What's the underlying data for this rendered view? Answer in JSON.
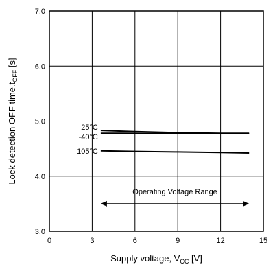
{
  "chart_data": {
    "type": "line",
    "title": "",
    "xlabel": {
      "main": "Supply voltage, V",
      "sub": "CC",
      "unit": " [V]"
    },
    "ylabel": {
      "main": "Lock detection OFF time.t",
      "sub": "OFF",
      "unit": " [s]"
    },
    "xlim": [
      0,
      15
    ],
    "ylim": [
      3.0,
      7.0
    ],
    "x_ticks": [
      0,
      3,
      6,
      9,
      12,
      15
    ],
    "x_tick_labels": [
      "0",
      "3",
      "6",
      "9",
      "12",
      "15"
    ],
    "y_ticks": [
      3.0,
      4.0,
      5.0,
      6.0,
      7.0
    ],
    "y_tick_labels": [
      "3.0",
      "4.0",
      "5.0",
      "6.0",
      "7.0"
    ],
    "grid": true,
    "series": [
      {
        "name": "25°C",
        "x": [
          3.6,
          6,
          9,
          12,
          14.0
        ],
        "y": [
          4.83,
          4.81,
          4.79,
          4.78,
          4.78
        ]
      },
      {
        "name": "-40°C",
        "x": [
          3.6,
          6,
          9,
          12,
          14.0
        ],
        "y": [
          4.78,
          4.78,
          4.78,
          4.77,
          4.77
        ]
      },
      {
        "name": "105°C",
        "x": [
          3.6,
          6,
          9,
          12,
          14.0
        ],
        "y": [
          4.46,
          4.45,
          4.44,
          4.43,
          4.42
        ]
      }
    ],
    "annotation": {
      "text": "Operating Voltage Range",
      "x_range": [
        3.6,
        14.0
      ],
      "y_text": 3.72,
      "y_arrow": 3.5
    }
  }
}
